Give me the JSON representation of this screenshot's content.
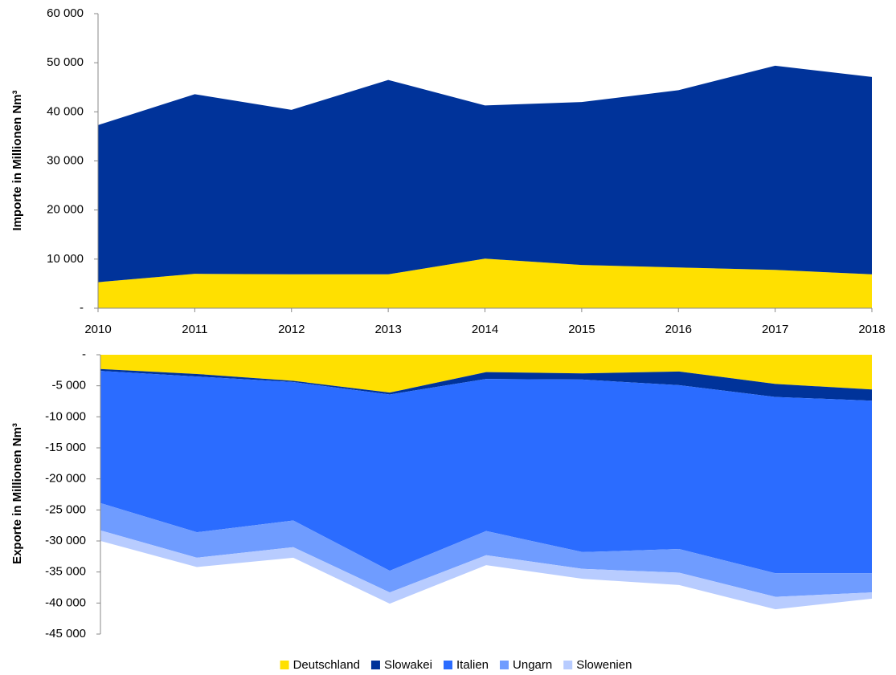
{
  "chart_data": [
    {
      "type": "area",
      "y_label": "Importe in Millionen Nm³",
      "categories": [
        "2010",
        "2011",
        "2012",
        "2013",
        "2014",
        "2015",
        "2016",
        "2017",
        "2018"
      ],
      "series": [
        {
          "name": "Deutschland",
          "color": "#ffe000",
          "values": [
            5300,
            7000,
            6900,
            6900,
            10100,
            8800,
            8300,
            7800,
            6900
          ]
        },
        {
          "name": "Slowakei",
          "color": "#00339a",
          "values": [
            32000,
            36600,
            33500,
            39600,
            31200,
            33200,
            36100,
            41600,
            40200
          ]
        }
      ],
      "ylim": [
        0,
        60000
      ],
      "yticks": [
        {
          "value": 0,
          "label": "-"
        },
        {
          "value": 10000,
          "label": "10 000"
        },
        {
          "value": 20000,
          "label": "20 000"
        },
        {
          "value": 30000,
          "label": "30 000"
        },
        {
          "value": 40000,
          "label": "40 000"
        },
        {
          "value": 50000,
          "label": "50 000"
        },
        {
          "value": 60000,
          "label": "60 000"
        }
      ]
    },
    {
      "type": "area",
      "y_label": "Exporte in Millionen Nm³",
      "categories": [
        null,
        null,
        null,
        null,
        null,
        null,
        null,
        null,
        null
      ],
      "series": [
        {
          "name": "Deutschland",
          "color": "#ffe000",
          "values": [
            -2300,
            -3100,
            -4200,
            -6100,
            -2800,
            -3000,
            -2700,
            -4700,
            -5600
          ]
        },
        {
          "name": "Slowakei",
          "color": "#00339a",
          "values": [
            -300,
            -400,
            -200,
            -300,
            -1100,
            -1000,
            -2200,
            -2100,
            -1800
          ]
        },
        {
          "name": "Italien",
          "color": "#2b6cff",
          "values": [
            -21300,
            -25100,
            -22300,
            -28400,
            -24500,
            -27800,
            -26400,
            -28400,
            -27800
          ]
        },
        {
          "name": "Ungarn",
          "color": "#6f9cff",
          "values": [
            -4400,
            -4100,
            -4300,
            -3500,
            -3900,
            -2700,
            -3800,
            -3800,
            -3100
          ]
        },
        {
          "name": "Slowenien",
          "color": "#b8ccff",
          "values": [
            -1700,
            -1500,
            -1700,
            -1800,
            -1600,
            -1600,
            -2000,
            -2000,
            -1000
          ]
        }
      ],
      "ylim": [
        -45000,
        0
      ],
      "yticks": [
        {
          "value": 0,
          "label": "-"
        },
        {
          "value": -5000,
          "label": "-5 000"
        },
        {
          "value": -10000,
          "label": "-10 000"
        },
        {
          "value": -15000,
          "label": "-15 000"
        },
        {
          "value": -20000,
          "label": "-20 000"
        },
        {
          "value": -25000,
          "label": "-25 000"
        },
        {
          "value": -30000,
          "label": "-30 000"
        },
        {
          "value": -35000,
          "label": "-35 000"
        },
        {
          "value": -40000,
          "label": "-40 000"
        },
        {
          "value": -45000,
          "label": "-45 000"
        }
      ]
    }
  ]
}
